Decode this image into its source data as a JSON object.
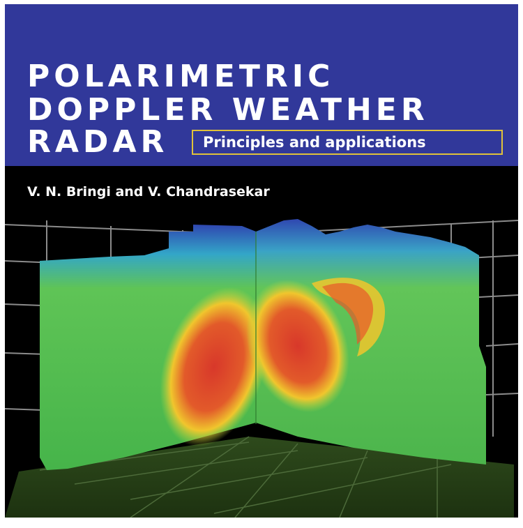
{
  "book": {
    "title_lines": [
      "POLARIMETRIC",
      "DOPPLER WEATHER",
      "RADAR"
    ],
    "subtitle": "Principles and applications",
    "authors": "V. N. Bringi and V. Chandrasekar"
  },
  "colors": {
    "title_band": "#31389a",
    "subtitle_border": "#e0c23a",
    "background": "#000000",
    "radar_low": "#2f4fb0",
    "radar_mid": "#49b54a",
    "radar_high": "#d8382a",
    "radar_peak": "#f2e22c"
  },
  "illustration": {
    "subject": "3D radar cross-section of a storm cell"
  }
}
